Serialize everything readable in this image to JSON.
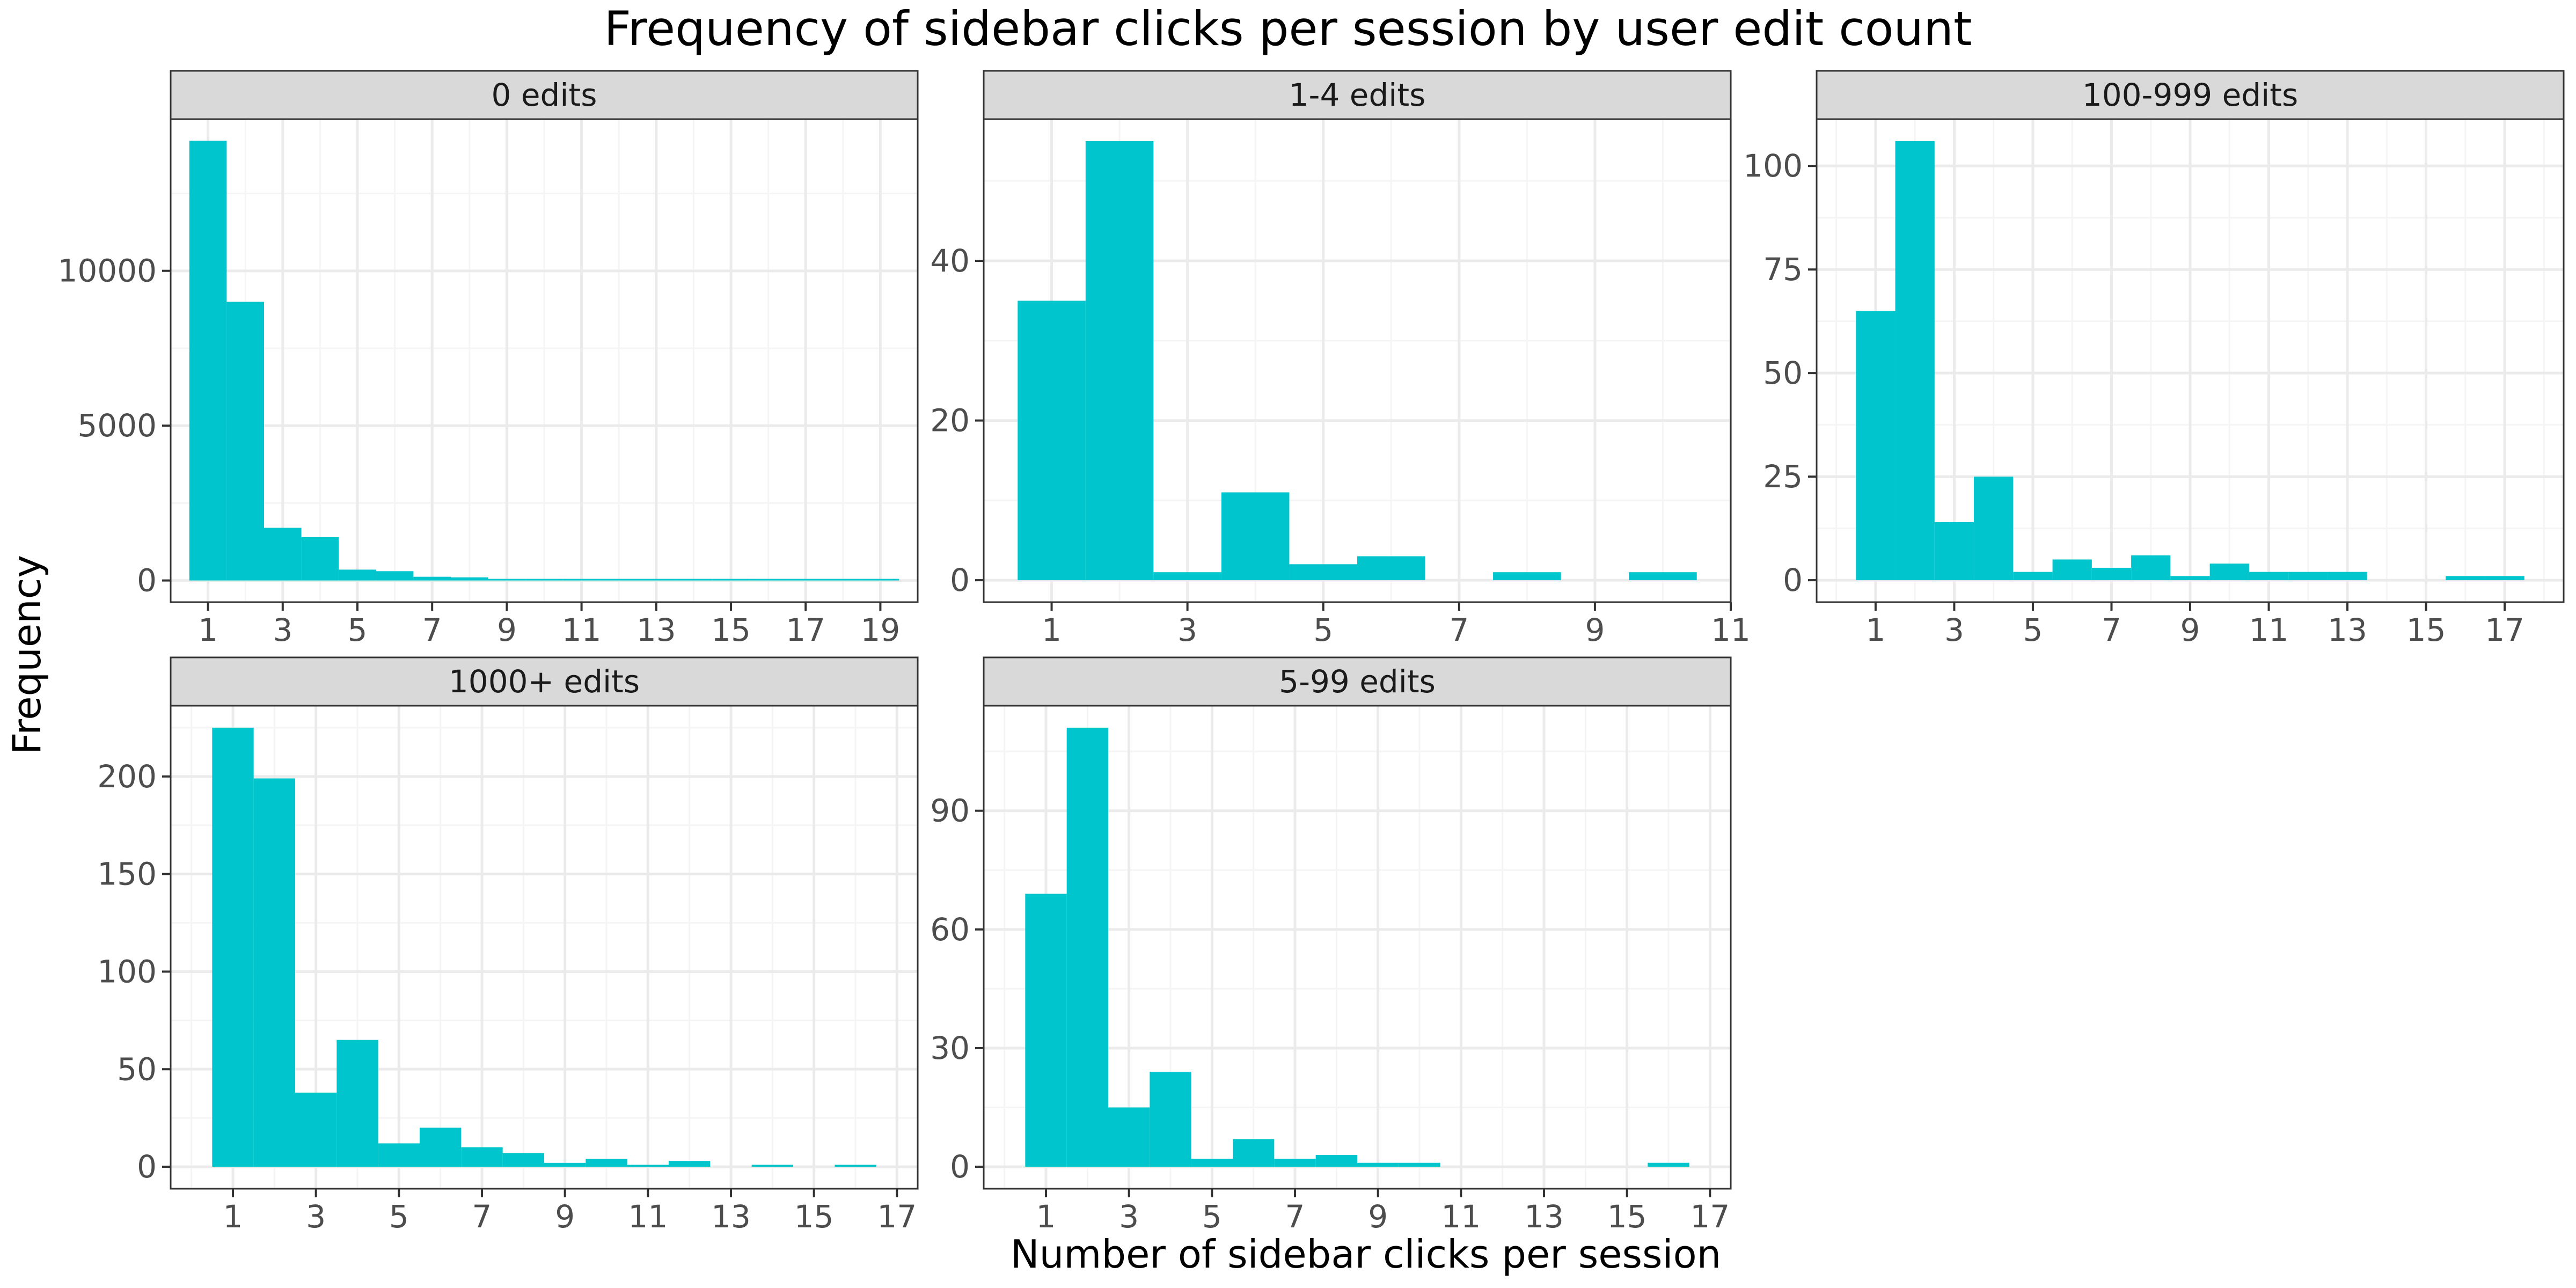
{
  "figure": {
    "title": "Frequency of sidebar clicks per session by user edit count",
    "xlabel": "Number of sidebar clicks per session",
    "ylabel": "Frequency"
  },
  "colors": {
    "bar": "#00C5CD",
    "strip_fill": "#D9D9D9",
    "panel_border": "#333333",
    "grid_major": "#EBEBEB",
    "grid_minor": "#F5F5F5",
    "tick_text": "#4D4D4D"
  },
  "chart_data": [
    {
      "type": "bar",
      "facet": "0 edits",
      "bins": [
        1,
        2,
        3,
        4,
        5,
        6,
        7,
        8,
        9,
        10,
        11,
        12,
        13,
        14,
        15,
        16,
        17,
        18,
        19
      ],
      "values": [
        14200,
        9000,
        1700,
        1400,
        350,
        300,
        120,
        100,
        50,
        40,
        30,
        20,
        15,
        10,
        5,
        3,
        2,
        1,
        1
      ],
      "xlim": [
        0,
        20
      ],
      "ylim": [
        -700,
        14900
      ],
      "xticks": [
        1,
        3,
        5,
        7,
        9,
        11,
        13,
        15,
        17,
        19
      ],
      "yticks": [
        0,
        5000,
        10000
      ]
    },
    {
      "type": "bar",
      "facet": "1-4 edits",
      "bins": [
        1,
        2,
        3,
        4,
        5,
        6,
        7,
        8,
        9,
        10
      ],
      "values": [
        35,
        55,
        1,
        11,
        2,
        3,
        0,
        1,
        0,
        1
      ],
      "xlim": [
        0,
        11
      ],
      "ylim": [
        -2.75,
        57.75
      ],
      "xticks": [
        1,
        3,
        5,
        7,
        9,
        11
      ],
      "yticks": [
        0,
        20,
        40
      ]
    },
    {
      "type": "bar",
      "facet": "100-999 edits",
      "bins": [
        1,
        2,
        3,
        4,
        5,
        6,
        7,
        8,
        9,
        10,
        11,
        12,
        13,
        14,
        15,
        16,
        17
      ],
      "values": [
        65,
        106,
        14,
        25,
        2,
        5,
        3,
        6,
        1,
        4,
        2,
        2,
        2,
        0,
        0,
        1,
        1
      ],
      "xlim": [
        -0.5,
        18.5
      ],
      "ylim": [
        -5.3,
        111.3
      ],
      "xticks": [
        1,
        3,
        5,
        7,
        9,
        11,
        13,
        15,
        17
      ],
      "yticks": [
        0,
        25,
        50,
        75,
        100
      ]
    },
    {
      "type": "bar",
      "facet": "1000+ edits",
      "bins": [
        1,
        2,
        3,
        4,
        5,
        6,
        7,
        8,
        9,
        10,
        11,
        12,
        13,
        14,
        15,
        16
      ],
      "values": [
        225,
        199,
        38,
        65,
        12,
        20,
        10,
        7,
        2,
        4,
        1,
        3,
        0,
        1,
        0,
        1
      ],
      "xlim": [
        -0.5,
        17.5
      ],
      "ylim": [
        -11.25,
        236.25
      ],
      "xticks": [
        1,
        3,
        5,
        7,
        9,
        11,
        13,
        15,
        17
      ],
      "yticks": [
        0,
        50,
        100,
        150,
        200
      ]
    },
    {
      "type": "bar",
      "facet": "5-99 edits",
      "bins": [
        1,
        2,
        3,
        4,
        5,
        6,
        7,
        8,
        9,
        10,
        11,
        12,
        13,
        14,
        15,
        16
      ],
      "values": [
        69,
        111,
        15,
        24,
        2,
        7,
        2,
        3,
        1,
        1,
        0,
        0,
        0,
        0,
        0,
        1
      ],
      "xlim": [
        -0.5,
        17.5
      ],
      "ylim": [
        -5.55,
        116.55
      ],
      "xticks": [
        1,
        3,
        5,
        7,
        9,
        11,
        13,
        15,
        17
      ],
      "yticks": [
        0,
        30,
        60,
        90
      ]
    }
  ]
}
